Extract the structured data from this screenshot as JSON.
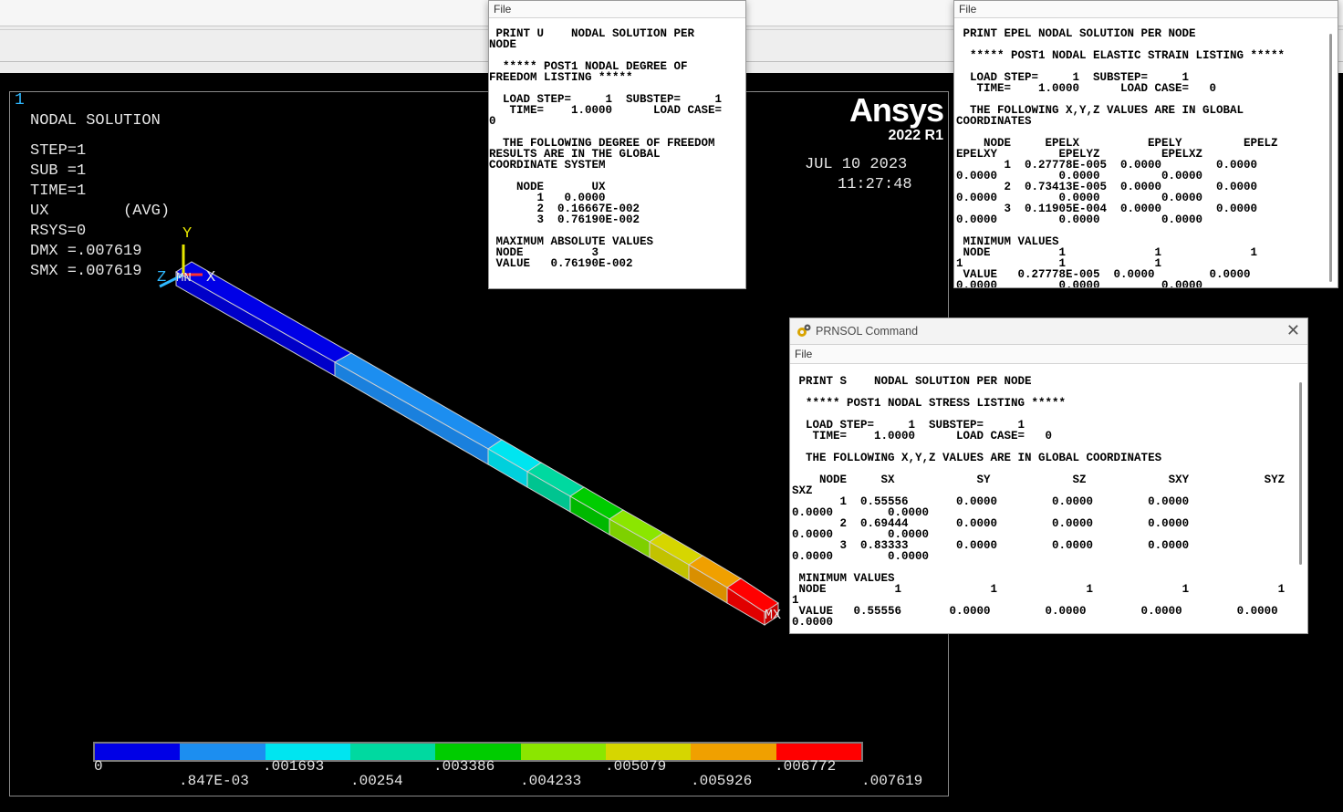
{
  "graphics": {
    "window_number": "1",
    "info_lines": [
      "NODAL SOLUTION",
      "STEP=1",
      "SUB =1",
      "TIME=1",
      "UX        (AVG)",
      "RSYS=0",
      "DMX =.007619",
      "SMX =.007619"
    ],
    "logo_text": "Ansys",
    "logo_version": "2022 R1",
    "date": "JUL 10 2023",
    "time": "11:27:48",
    "axis_y": "Y",
    "axis_x": "X",
    "axis_z": "Z",
    "axis_mn": "MN",
    "max_label": "MX",
    "legend_colors": [
      "#0000e6",
      "#1c8ef0",
      "#00e5f0",
      "#00d9a0",
      "#00cc00",
      "#8be600",
      "#d6d600",
      "#f0a000",
      "#ff0000"
    ],
    "legend_top": [
      "0",
      ".001693",
      ".003386",
      ".005079",
      ".006772"
    ],
    "legend_bottom": [
      ".847E-03",
      ".00254",
      ".004233",
      ".005926",
      ".007619"
    ]
  },
  "print_u": {
    "menu": "File",
    "text": " PRINT U    NODAL SOLUTION PER\nNODE\n\n  ***** POST1 NODAL DEGREE OF\nFREEDOM LISTING *****\n\n  LOAD STEP=     1  SUBSTEP=     1\n   TIME=    1.0000      LOAD CASE=\n0\n\n  THE FOLLOWING DEGREE OF FREEDOM\nRESULTS ARE IN THE GLOBAL\nCOORDINATE SYSTEM\n\n    NODE       UX\n       1   0.0000\n       2  0.16667E-002\n       3  0.76190E-002\n\n MAXIMUM ABSOLUTE VALUES\n NODE          3\n VALUE   0.76190E-002"
  },
  "print_epel": {
    "menu": "File",
    "text": " PRINT EPEL NODAL SOLUTION PER NODE\n\n  ***** POST1 NODAL ELASTIC STRAIN LISTING *****\n\n  LOAD STEP=     1  SUBSTEP=     1\n   TIME=    1.0000      LOAD CASE=   0\n\n  THE FOLLOWING X,Y,Z VALUES ARE IN GLOBAL\nCOORDINATES\n\n    NODE     EPELX          EPELY         EPELZ\nEPELXY         EPELYZ         EPELXZ\n       1  0.27778E-005  0.0000        0.0000\n0.0000         0.0000         0.0000\n       2  0.73413E-005  0.0000        0.0000\n0.0000         0.0000         0.0000\n       3  0.11905E-004  0.0000        0.0000\n0.0000         0.0000         0.0000\n\n MINIMUM VALUES\n NODE          1             1             1\n1              1             1\n VALUE   0.27778E-005  0.0000        0.0000\n0.0000         0.0000         0.0000"
  },
  "prnsol": {
    "title": "PRNSOL   Command",
    "close_glyph": "✕",
    "menu": "File",
    "text": " PRINT S    NODAL SOLUTION PER NODE\n\n  ***** POST1 NODAL STRESS LISTING *****\n\n  LOAD STEP=     1  SUBSTEP=     1\n   TIME=    1.0000      LOAD CASE=   0\n\n  THE FOLLOWING X,Y,Z VALUES ARE IN GLOBAL COORDINATES\n\n    NODE     SX            SY            SZ            SXY           SYZ\nSXZ\n       1  0.55556       0.0000        0.0000        0.0000\n0.0000        0.0000\n       2  0.69444       0.0000        0.0000        0.0000\n0.0000        0.0000\n       3  0.83333       0.0000        0.0000        0.0000\n0.0000        0.0000\n\n MINIMUM VALUES\n NODE          1             1             1             1             1\n1\n VALUE   0.55556       0.0000        0.0000        0.0000        0.0000\n0.0000"
  }
}
